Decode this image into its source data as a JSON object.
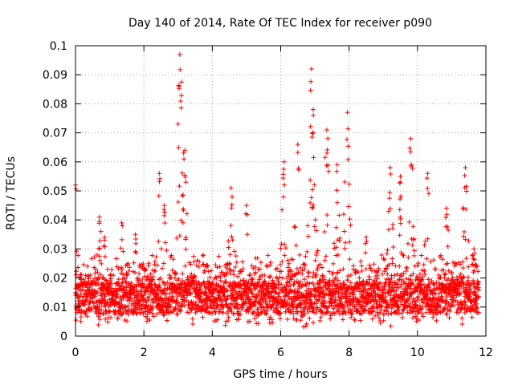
{
  "chart_data": {
    "type": "scatter",
    "title": "Day 140 of 2014, Rate Of TEC Index for receiver p090",
    "xlabel": "GPS time / hours",
    "ylabel": "ROTI / TECUs",
    "xlim": [
      0,
      12
    ],
    "ylim": [
      0,
      0.1
    ],
    "xticks": [
      0,
      2,
      4,
      6,
      8,
      10,
      12
    ],
    "yticks": [
      0,
      0.01,
      0.02,
      0.03,
      0.04,
      0.05,
      0.06,
      0.07,
      0.08,
      0.09,
      0.1
    ],
    "xtick_labels": [
      "0",
      "2",
      "4",
      "6",
      "8",
      "10",
      "12"
    ],
    "ytick_labels": [
      "0",
      "0.01",
      "0.02",
      "0.03",
      "0.04",
      "0.05",
      "0.06",
      "0.07",
      "0.08",
      "0.09",
      "0.1"
    ],
    "grid": true,
    "marker": "+",
    "color": "#ff0000",
    "series": [
      {
        "name": "ROTI",
        "x_range": [
          0,
          11.8
        ],
        "baseline_range": [
          0.004,
          0.025
        ],
        "peaks": [
          {
            "x": 0.0,
            "y": 0.052
          },
          {
            "x": 0.7,
            "y": 0.041
          },
          {
            "x": 0.85,
            "y": 0.034
          },
          {
            "x": 1.35,
            "y": 0.039
          },
          {
            "x": 1.75,
            "y": 0.035
          },
          {
            "x": 2.45,
            "y": 0.056
          },
          {
            "x": 2.6,
            "y": 0.045
          },
          {
            "x": 3.05,
            "y": 0.097
          },
          {
            "x": 3.1,
            "y": 0.0875
          },
          {
            "x": 3.2,
            "y": 0.064
          },
          {
            "x": 4.55,
            "y": 0.051
          },
          {
            "x": 5.0,
            "y": 0.045
          },
          {
            "x": 6.1,
            "y": 0.06
          },
          {
            "x": 6.5,
            "y": 0.066
          },
          {
            "x": 6.9,
            "y": 0.092
          },
          {
            "x": 6.95,
            "y": 0.078
          },
          {
            "x": 7.35,
            "y": 0.071
          },
          {
            "x": 7.65,
            "y": 0.059
          },
          {
            "x": 7.95,
            "y": 0.077
          },
          {
            "x": 8.5,
            "y": 0.034
          },
          {
            "x": 9.2,
            "y": 0.058
          },
          {
            "x": 9.5,
            "y": 0.055
          },
          {
            "x": 9.8,
            "y": 0.068
          },
          {
            "x": 10.3,
            "y": 0.056
          },
          {
            "x": 10.85,
            "y": 0.044
          },
          {
            "x": 11.4,
            "y": 0.058
          },
          {
            "x": 11.65,
            "y": 0.03
          }
        ]
      }
    ]
  }
}
